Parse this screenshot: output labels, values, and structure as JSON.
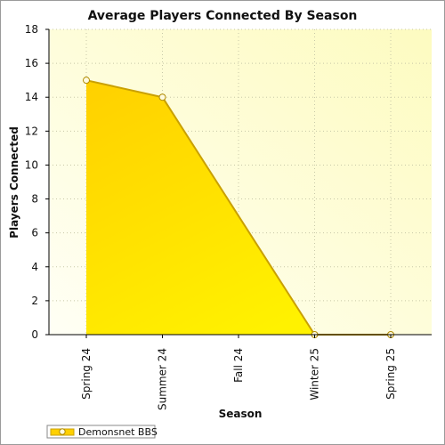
{
  "chart_data": {
    "type": "area",
    "title": "Average Players Connected By Season",
    "xlabel": "Season",
    "ylabel": "Players Connected",
    "categories": [
      "Spring 24",
      "Summer 24",
      "Fall 24",
      "Winter 25",
      "Spring 25"
    ],
    "series": [
      {
        "name": "Demonsnet BBS",
        "values": [
          15,
          14,
          null,
          0,
          0
        ]
      }
    ],
    "ylim": [
      0,
      18
    ],
    "yticks": [
      "0",
      "2",
      "4",
      "6",
      "8",
      "10",
      "12",
      "14",
      "16",
      "18"
    ],
    "grid": true,
    "legend_position": "bottom-left",
    "colors": {
      "fill_top": "#ffd000",
      "fill_bottom": "#fff200",
      "line": "#c9a000",
      "marker_fill": "#fffbe0",
      "plot_bg_light": "#fffff5",
      "plot_bg_dark": "#fdfbc0",
      "grid": "#c8c8a8"
    }
  }
}
